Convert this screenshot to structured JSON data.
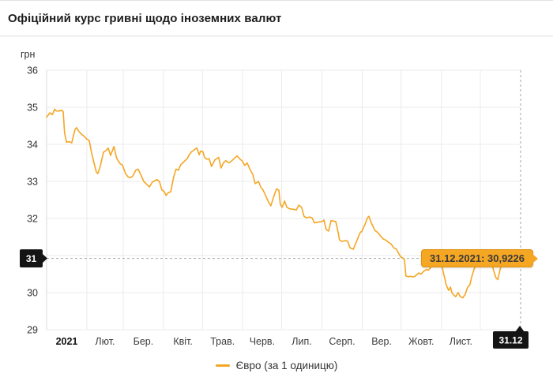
{
  "header": {
    "title": "Офіційний курс гривні щодо іноземних валют"
  },
  "legend": {
    "label": "Євро (за 1 одиницю)"
  },
  "chart_data": {
    "type": "line",
    "title": "Офіційний курс гривні щодо іноземних валют",
    "unit_label": "грн",
    "series_name": "Євро (за 1 одиницю)",
    "line_color": "#f5a623",
    "grid": true,
    "legend_position": "bottom-center",
    "x_axis": {
      "year_label": "2021",
      "month_labels": [
        "Лют.",
        "Бер.",
        "Квіт.",
        "Трав.",
        "Черв.",
        "Лип.",
        "Серп.",
        "Вер.",
        "Жовт.",
        "Лист."
      ],
      "range_days": 365
    },
    "y_axis": {
      "ticks": [
        36,
        35,
        34,
        33,
        32,
        31,
        30,
        29
      ],
      "highlighted_tick": 31,
      "ylim": [
        29,
        36
      ]
    },
    "markers": {
      "y_tag": "31",
      "x_tag": "31.12"
    },
    "tooltip": {
      "label": "31.12.2021: 30,9226",
      "date": "31.12.2021",
      "value": 30.9226
    },
    "points": [
      [
        0.0,
        34.73
      ],
      [
        0.003,
        34.78
      ],
      [
        0.007,
        34.85
      ],
      [
        0.012,
        34.8
      ],
      [
        0.017,
        34.95
      ],
      [
        0.02,
        34.9
      ],
      [
        0.027,
        34.9
      ],
      [
        0.032,
        34.92
      ],
      [
        0.035,
        34.88
      ],
      [
        0.038,
        34.3
      ],
      [
        0.042,
        34.06
      ],
      [
        0.048,
        34.07
      ],
      [
        0.053,
        34.04
      ],
      [
        0.057,
        34.25
      ],
      [
        0.06,
        34.4
      ],
      [
        0.063,
        34.45
      ],
      [
        0.068,
        34.35
      ],
      [
        0.073,
        34.28
      ],
      [
        0.078,
        34.23
      ],
      [
        0.082,
        34.18
      ],
      [
        0.085,
        34.14
      ],
      [
        0.09,
        34.1
      ],
      [
        0.095,
        33.76
      ],
      [
        0.1,
        33.5
      ],
      [
        0.105,
        33.25
      ],
      [
        0.108,
        33.21
      ],
      [
        0.113,
        33.4
      ],
      [
        0.12,
        33.79
      ],
      [
        0.125,
        33.83
      ],
      [
        0.13,
        33.9
      ],
      [
        0.135,
        33.7
      ],
      [
        0.142,
        33.94
      ],
      [
        0.148,
        33.62
      ],
      [
        0.155,
        33.48
      ],
      [
        0.16,
        33.44
      ],
      [
        0.167,
        33.2
      ],
      [
        0.172,
        33.12
      ],
      [
        0.177,
        33.1
      ],
      [
        0.182,
        33.15
      ],
      [
        0.188,
        33.3
      ],
      [
        0.193,
        33.33
      ],
      [
        0.198,
        33.2
      ],
      [
        0.205,
        33.0
      ],
      [
        0.212,
        32.91
      ],
      [
        0.217,
        32.85
      ],
      [
        0.223,
        32.98
      ],
      [
        0.228,
        33.02
      ],
      [
        0.233,
        33.05
      ],
      [
        0.238,
        33.0
      ],
      [
        0.243,
        32.77
      ],
      [
        0.248,
        32.73
      ],
      [
        0.252,
        32.62
      ],
      [
        0.257,
        32.7
      ],
      [
        0.262,
        32.72
      ],
      [
        0.268,
        33.12
      ],
      [
        0.273,
        33.33
      ],
      [
        0.278,
        33.3
      ],
      [
        0.283,
        33.45
      ],
      [
        0.288,
        33.51
      ],
      [
        0.297,
        33.62
      ],
      [
        0.3,
        33.7
      ],
      [
        0.305,
        33.79
      ],
      [
        0.313,
        33.87
      ],
      [
        0.317,
        33.9
      ],
      [
        0.322,
        33.72
      ],
      [
        0.325,
        33.82
      ],
      [
        0.33,
        33.8
      ],
      [
        0.333,
        33.65
      ],
      [
        0.338,
        33.6
      ],
      [
        0.343,
        33.61
      ],
      [
        0.348,
        33.4
      ],
      [
        0.355,
        33.58
      ],
      [
        0.363,
        33.65
      ],
      [
        0.368,
        33.36
      ],
      [
        0.373,
        33.5
      ],
      [
        0.378,
        33.56
      ],
      [
        0.385,
        33.5
      ],
      [
        0.39,
        33.55
      ],
      [
        0.395,
        33.61
      ],
      [
        0.402,
        33.69
      ],
      [
        0.408,
        33.6
      ],
      [
        0.413,
        33.55
      ],
      [
        0.418,
        33.43
      ],
      [
        0.423,
        33.5
      ],
      [
        0.43,
        33.3
      ],
      [
        0.435,
        33.19
      ],
      [
        0.44,
        32.94
      ],
      [
        0.447,
        33.0
      ],
      [
        0.452,
        32.84
      ],
      [
        0.457,
        32.76
      ],
      [
        0.463,
        32.59
      ],
      [
        0.468,
        32.45
      ],
      [
        0.473,
        32.34
      ],
      [
        0.48,
        32.62
      ],
      [
        0.485,
        32.8
      ],
      [
        0.49,
        32.76
      ],
      [
        0.493,
        32.38
      ],
      [
        0.497,
        32.3
      ],
      [
        0.502,
        32.47
      ],
      [
        0.507,
        32.3
      ],
      [
        0.513,
        32.26
      ],
      [
        0.52,
        32.25
      ],
      [
        0.527,
        32.23
      ],
      [
        0.532,
        32.36
      ],
      [
        0.538,
        32.3
      ],
      [
        0.543,
        32.06
      ],
      [
        0.548,
        32.02
      ],
      [
        0.555,
        32.04
      ],
      [
        0.56,
        32.02
      ],
      [
        0.565,
        31.88
      ],
      [
        0.572,
        31.9
      ],
      [
        0.577,
        31.91
      ],
      [
        0.582,
        31.92
      ],
      [
        0.585,
        31.96
      ],
      [
        0.59,
        31.7
      ],
      [
        0.595,
        31.66
      ],
      [
        0.6,
        31.94
      ],
      [
        0.605,
        31.93
      ],
      [
        0.61,
        31.92
      ],
      [
        0.615,
        31.63
      ],
      [
        0.618,
        31.42
      ],
      [
        0.623,
        31.38
      ],
      [
        0.63,
        31.4
      ],
      [
        0.635,
        31.39
      ],
      [
        0.64,
        31.21
      ],
      [
        0.647,
        31.17
      ],
      [
        0.655,
        31.42
      ],
      [
        0.662,
        31.63
      ],
      [
        0.665,
        31.65
      ],
      [
        0.673,
        31.88
      ],
      [
        0.677,
        32.02
      ],
      [
        0.68,
        32.06
      ],
      [
        0.685,
        31.88
      ],
      [
        0.693,
        31.67
      ],
      [
        0.698,
        31.63
      ],
      [
        0.705,
        31.52
      ],
      [
        0.71,
        31.45
      ],
      [
        0.715,
        31.42
      ],
      [
        0.722,
        31.35
      ],
      [
        0.727,
        31.31
      ],
      [
        0.732,
        31.21
      ],
      [
        0.738,
        31.17
      ],
      [
        0.743,
        31.05
      ],
      [
        0.747,
        30.96
      ],
      [
        0.752,
        30.93
      ],
      [
        0.755,
        30.89
      ],
      [
        0.758,
        30.45
      ],
      [
        0.763,
        30.43
      ],
      [
        0.768,
        30.44
      ],
      [
        0.773,
        30.42
      ],
      [
        0.778,
        30.45
      ],
      [
        0.785,
        30.53
      ],
      [
        0.79,
        30.5
      ],
      [
        0.795,
        30.57
      ],
      [
        0.802,
        30.63
      ],
      [
        0.805,
        30.6
      ],
      [
        0.812,
        30.7
      ],
      [
        0.815,
        30.74
      ],
      [
        0.82,
        30.92
      ],
      [
        0.823,
        30.96
      ],
      [
        0.828,
        31.03
      ],
      [
        0.833,
        30.85
      ],
      [
        0.837,
        30.53
      ],
      [
        0.84,
        30.39
      ],
      [
        0.843,
        30.21
      ],
      [
        0.848,
        30.06
      ],
      [
        0.852,
        30.15
      ],
      [
        0.855,
        30.0
      ],
      [
        0.858,
        29.95
      ],
      [
        0.863,
        29.89
      ],
      [
        0.868,
        30.0
      ],
      [
        0.873,
        29.89
      ],
      [
        0.878,
        29.86
      ],
      [
        0.883,
        29.95
      ],
      [
        0.888,
        30.14
      ],
      [
        0.893,
        30.21
      ],
      [
        0.897,
        30.43
      ],
      [
        0.902,
        30.64
      ],
      [
        0.905,
        30.71
      ],
      [
        0.908,
        30.85
      ],
      [
        0.913,
        30.9
      ],
      [
        0.918,
        30.95
      ],
      [
        0.923,
        31.0
      ],
      [
        0.928,
        30.9
      ],
      [
        0.933,
        30.95
      ],
      [
        0.938,
        30.85
      ],
      [
        0.943,
        30.6
      ],
      [
        0.948,
        30.4
      ],
      [
        0.952,
        30.35
      ],
      [
        0.957,
        30.64
      ],
      [
        0.962,
        30.8
      ],
      [
        0.967,
        30.9
      ],
      [
        0.973,
        30.92
      ],
      [
        0.98,
        30.88
      ],
      [
        0.987,
        30.9
      ],
      [
        0.993,
        30.91
      ],
      [
        1.0,
        30.9226
      ]
    ]
  }
}
